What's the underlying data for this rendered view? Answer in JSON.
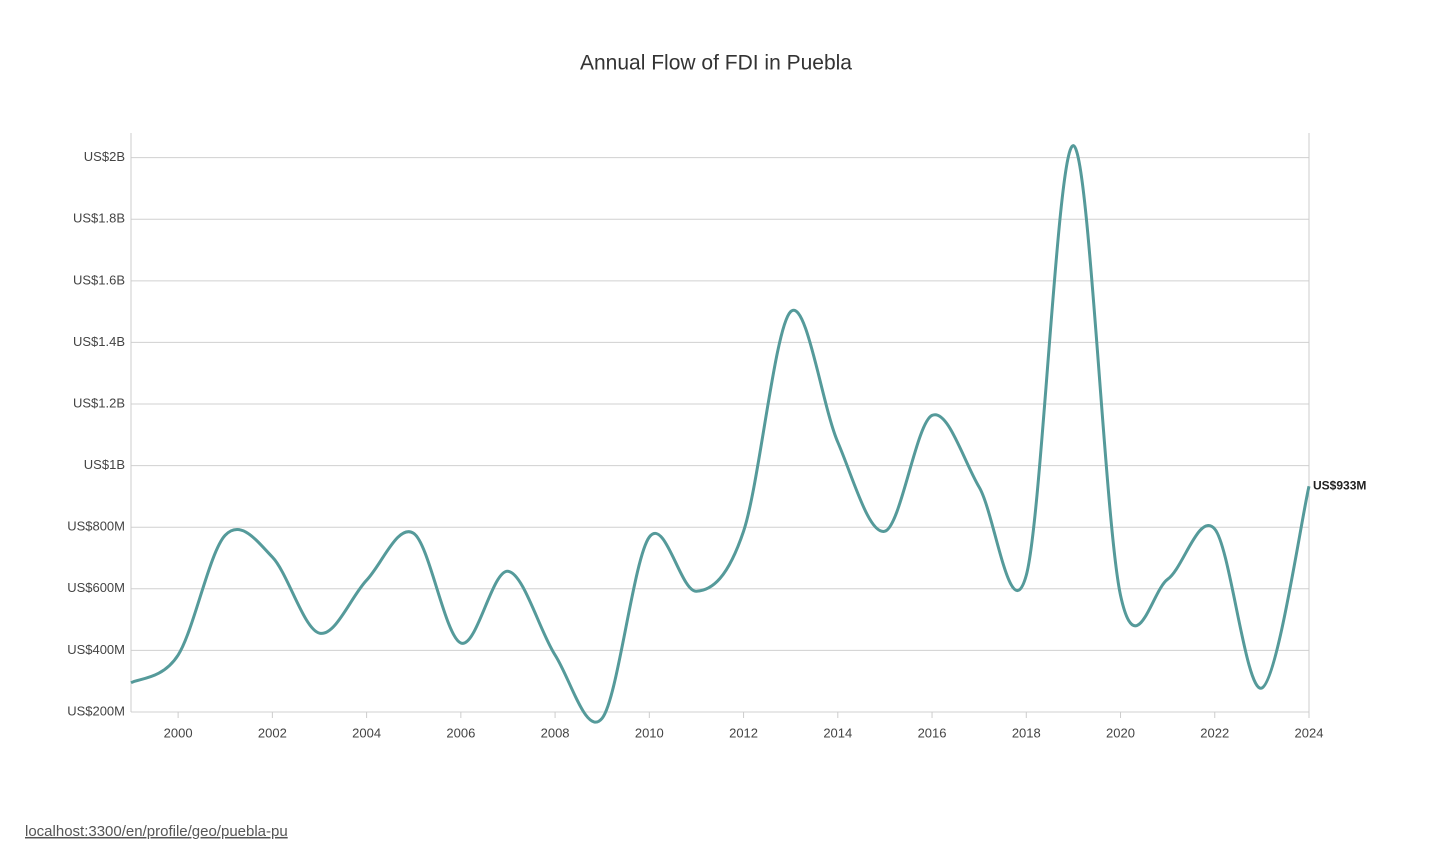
{
  "chart_data": {
    "type": "line",
    "title": "Annual Flow of FDI in Puebla",
    "x": [
      1999,
      2000,
      2001,
      2002,
      2003,
      2004,
      2005,
      2006,
      2007,
      2008,
      2009,
      2010,
      2011,
      2012,
      2013,
      2014,
      2015,
      2016,
      2017,
      2018,
      2019,
      2020,
      2021,
      2022,
      2023,
      2024
    ],
    "series": [
      {
        "name": "FDI",
        "color": "#559a9a",
        "values": [
          295000000,
          385000000,
          774000000,
          703000000,
          456000000,
          628000000,
          780000000,
          424000000,
          657000000,
          385000000,
          180000000,
          768000000,
          592000000,
          787000000,
          1500000000,
          1076000000,
          787000000,
          1163000000,
          930000000,
          644000000,
          2039000000,
          579000000,
          631000000,
          794000000,
          278000000,
          933000000
        ],
        "value_labels": [
          null,
          null,
          null,
          null,
          null,
          null,
          null,
          null,
          null,
          null,
          null,
          null,
          null,
          null,
          null,
          null,
          null,
          null,
          null,
          null,
          null,
          null,
          null,
          null,
          null,
          "US$933M"
        ]
      }
    ],
    "xlim": [
      1999,
      2024
    ],
    "xticks": [
      2000,
      2002,
      2004,
      2006,
      2008,
      2010,
      2012,
      2014,
      2016,
      2018,
      2020,
      2022,
      2024
    ],
    "ylim": [
      200000000,
      2080000000
    ],
    "yticks": [
      {
        "value": 200000000,
        "label": "US$200M"
      },
      {
        "value": 400000000,
        "label": "US$400M"
      },
      {
        "value": 600000000,
        "label": "US$600M"
      },
      {
        "value": 800000000,
        "label": "US$800M"
      },
      {
        "value": 1000000000,
        "label": "US$1B"
      },
      {
        "value": 1200000000,
        "label": "US$1.2B"
      },
      {
        "value": 1400000000,
        "label": "US$1.4B"
      },
      {
        "value": 1600000000,
        "label": "US$1.6B"
      },
      {
        "value": 1800000000,
        "label": "US$1.8B"
      },
      {
        "value": 2000000000,
        "label": "US$2B"
      }
    ],
    "grid": true
  },
  "footer_link": "localhost:3300/en/profile/geo/puebla-pu"
}
